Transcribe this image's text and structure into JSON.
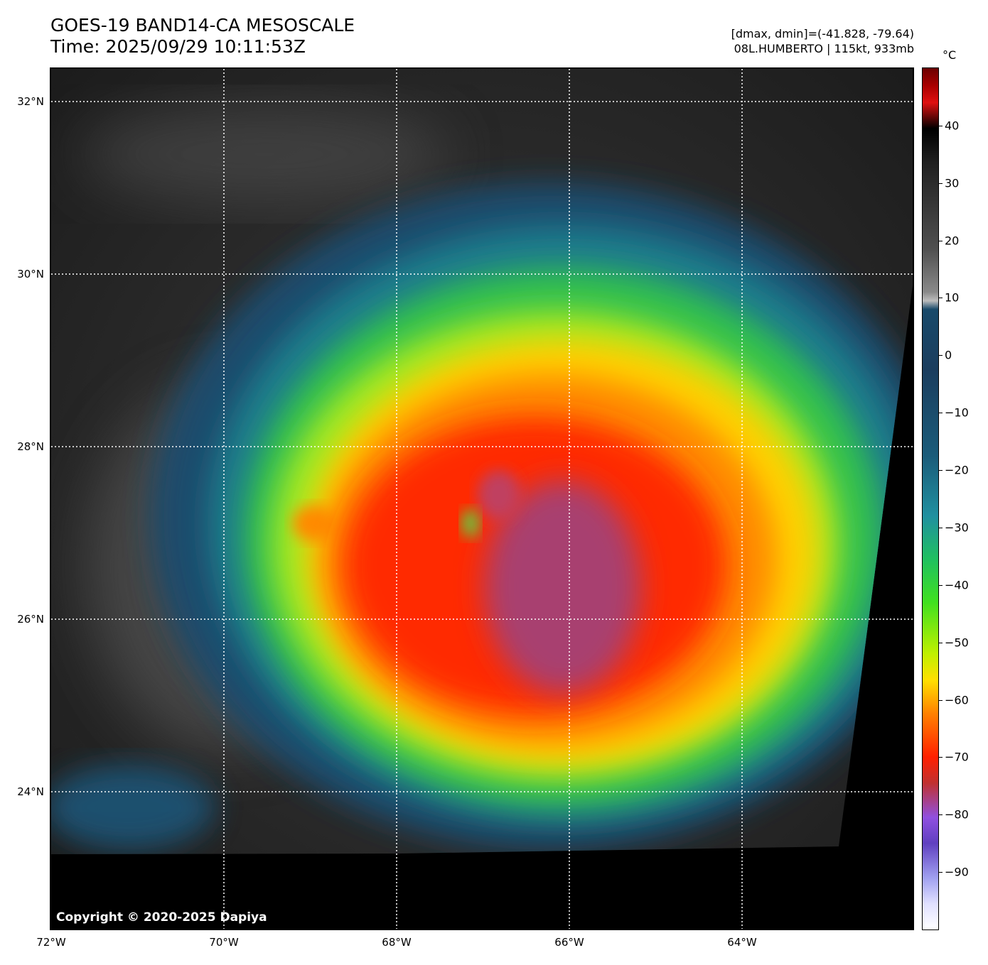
{
  "header": {
    "title_line1": "GOES-19 BAND14-CA MESOSCALE",
    "title_line2": "Time: 2025/09/29 10:11:53Z",
    "info_line1": "[dmax, dmin]=(-41.828, -79.64)",
    "info_line2": "08L.HUMBERTO | 115kt, 933mb"
  },
  "map": {
    "lat_labels": [
      "32°N",
      "30°N",
      "28°N",
      "26°N",
      "24°N"
    ],
    "lon_labels": [
      "72°W",
      "70°W",
      "68°W",
      "66°W",
      "64°W"
    ],
    "lat_values": [
      32,
      30,
      28,
      26,
      24
    ],
    "lon_values": [
      -72,
      -70,
      -68,
      -66,
      -64
    ],
    "copyright": "Copyright © 2020-2025 Dapiya"
  },
  "colorbar": {
    "unit": "°C",
    "tick_labels": [
      "40",
      "30",
      "20",
      "10",
      "0",
      "−10",
      "−20",
      "−30",
      "−40",
      "−50",
      "−60",
      "−70",
      "−80",
      "−90"
    ],
    "tick_values": [
      40,
      30,
      20,
      10,
      0,
      -10,
      -20,
      -30,
      -40,
      -50,
      -60,
      -70,
      -80,
      -90
    ],
    "range": [
      -100,
      50
    ]
  },
  "colors": {
    "background": "#1f1f1f",
    "cloud_cold": "#ff2000",
    "eye": "#a04070",
    "no_data": "#000000"
  }
}
